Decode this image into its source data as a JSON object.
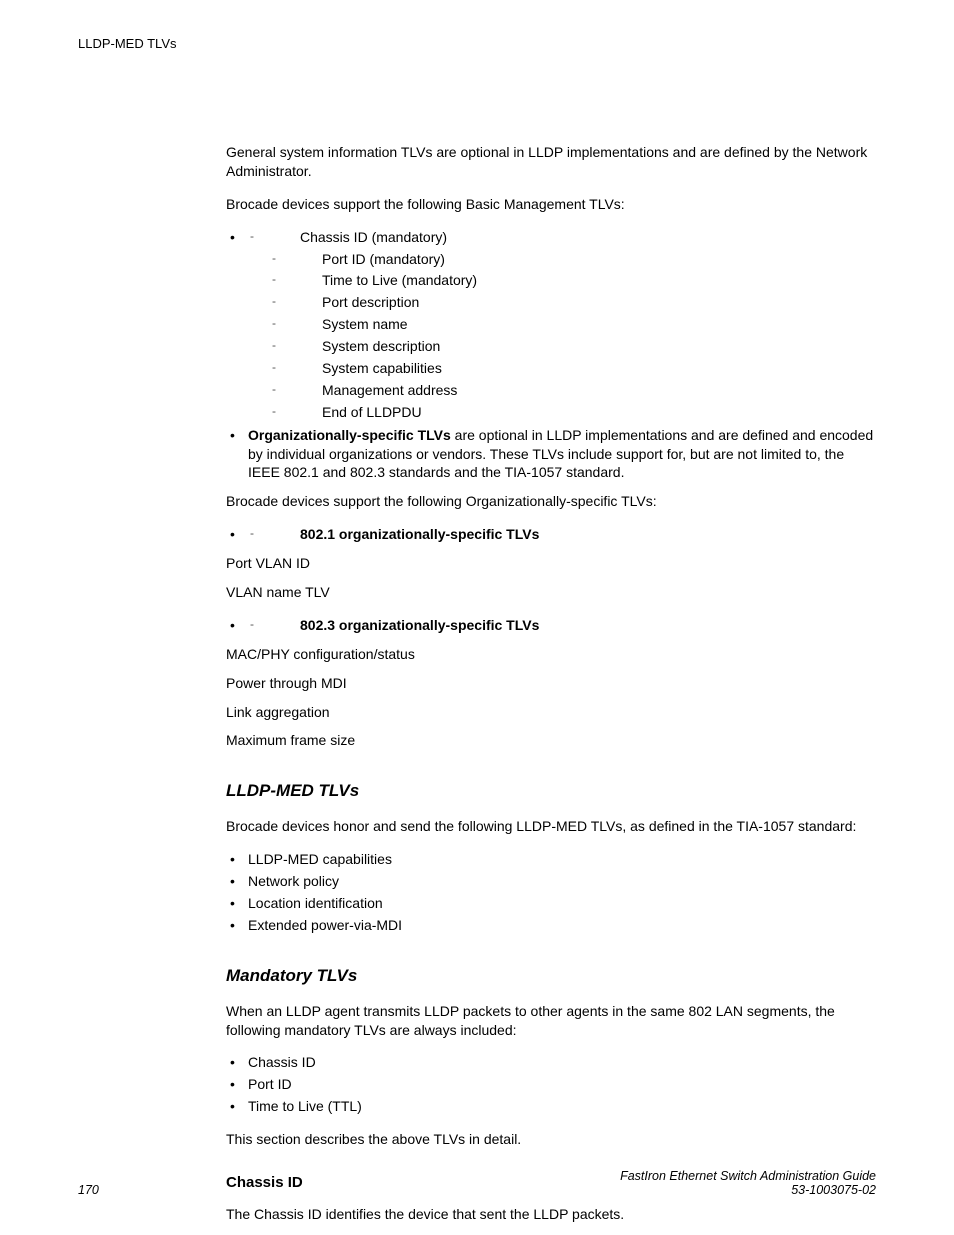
{
  "running_head": "LLDP-MED TLVs",
  "intro1": "General system information TLVs are optional in LLDP implementations and are defined by the Network Administrator.",
  "intro2": "Brocade devices support the following Basic Management TLVs:",
  "basic_tlvs": [
    "Chassis ID (mandatory)",
    "Port ID (mandatory)",
    "Time to Live (mandatory)",
    "Port description",
    "System name",
    "System description",
    "System capabilities",
    "Management address",
    "End of LLDPDU"
  ],
  "org_bold": "Organizationally-specific TLVs",
  "org_text": " are optional in LLDP implementations and are defined and encoded by individual organizations or vendors. These TLVs include support for, but are not limited to, the IEEE 802.1 and 802.3 standards and the TIA-1057 standard.",
  "org_intro2": "Brocade devices support the following Organizationally-specific TLVs:",
  "org_8021_label": "802.1 organizationally-specific TLVs",
  "org_8021_items": [
    "Port VLAN ID",
    "VLAN name TLV"
  ],
  "org_8023_label": "802.3 organizationally-specific TLVs",
  "org_8023_items": [
    "MAC/PHY configuration/status",
    "Power through MDI",
    "Link aggregation",
    "Maximum frame size"
  ],
  "lldp_med_heading": "LLDP-MED TLVs",
  "lldp_med_intro": "Brocade devices honor and send the following LLDP-MED TLVs, as defined in the TIA-1057 standard:",
  "lldp_med_items": [
    "LLDP-MED capabilities",
    "Network policy",
    "Location identification",
    "Extended power-via-MDI"
  ],
  "mandatory_heading": "Mandatory TLVs",
  "mandatory_intro": "When an LLDP agent transmits LLDP packets to other agents in the same 802 LAN segments, the following mandatory TLVs are always included:",
  "mandatory_items": [
    "Chassis ID",
    "Port ID",
    "Time to Live (TTL)"
  ],
  "mandatory_outro": "This section describes the above TLVs in detail.",
  "chassis_heading": "Chassis ID",
  "chassis_text": "The Chassis ID identifies the device that sent the LLDP packets.",
  "footer_page": "170",
  "footer_title": "FastIron Ethernet Switch Administration Guide",
  "footer_docnum": "53-1003075-02"
}
